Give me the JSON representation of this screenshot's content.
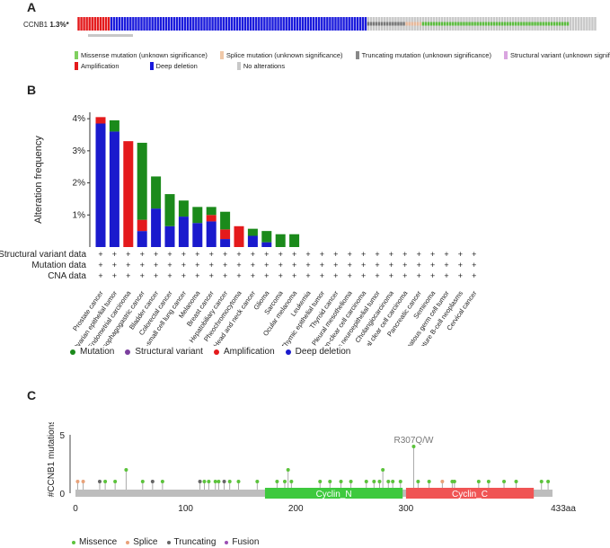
{
  "panels": {
    "a": "A",
    "b": "B",
    "c": "C"
  },
  "panel_a": {
    "gene": "CCNB1",
    "pct": "1.3%*",
    "colors": {
      "amplification": "#e41a1c",
      "deep_deletion": "#1a1adc",
      "missense": "#5cbd3f",
      "splice": "#e8b89a",
      "truncating": "#777777",
      "no_alteration": "#c8c8c8"
    },
    "legend": {
      "row1": [
        {
          "label": "Missense mutation (unknown significance)",
          "color": "#7fcf5f",
          "kind": "missense"
        },
        {
          "label": "Splice mutation (unknown significance)",
          "color": "#f0c8a8",
          "kind": "splice"
        },
        {
          "label": "Truncating mutation (unknown significance)",
          "color": "#888888",
          "kind": "truncating"
        },
        {
          "label": "Structural variant (unknown significance)",
          "color": "#d9a5e0",
          "kind": "structural"
        }
      ],
      "row2": [
        {
          "label": "Amplification",
          "color": "#e41a1c",
          "kind": "amplification"
        },
        {
          "label": "Deep deletion",
          "color": "#1a1adc",
          "kind": "deep-deletion"
        },
        {
          "label": "No alterations",
          "color": "#c8c8c8",
          "kind": "no-alterations"
        }
      ]
    }
  },
  "chart_data": [
    {
      "type": "bar",
      "title": "",
      "ylabel": "Alteration frequency",
      "ylim": [
        0,
        4.2
      ],
      "yticks": [
        "1%",
        "2%",
        "3%",
        "4%"
      ],
      "yticks_values": [
        1,
        2,
        3,
        4
      ],
      "categories": [
        "Prostate cancer",
        "Ovarian epithelial tumor",
        "Endometrial carcinoma",
        "Esophagogastric cancer",
        "Bladder cancer",
        "Colorectal cancer",
        "Non-small cell lung cancer",
        "Melanoma",
        "Breast cancer",
        "Hepatobiliary cancer",
        "Pheochromocytoma",
        "Head and neck cancer",
        "Glioma",
        "Sarcoma",
        "Ocular melanoma",
        "Leukemia",
        "Thymic epithelial tumor",
        "Thyroid cancer",
        "Pleural mesothelioma",
        "Renal non-clear cell carcinoma",
        "Miscellaneous neuroepithelial tumor",
        "Cholangiocarcinoma",
        "Renal clear cell carcinoma",
        "Pancreatic cancer",
        "Seminoma",
        "Non-seminomatous germ cell tumor",
        "Mature B-cell neoplasms",
        "Cervical cancer"
      ],
      "series": [
        {
          "name": "Deep deletion",
          "color": "#1a1acd",
          "values": [
            3.85,
            3.6,
            0,
            0.5,
            1.2,
            0.65,
            0.95,
            0.75,
            0.8,
            0.25,
            0,
            0.35,
            0.15,
            0,
            0,
            0,
            0,
            0,
            0,
            0,
            0,
            0,
            0,
            0,
            0,
            0,
            0,
            0
          ]
        },
        {
          "name": "Amplification",
          "color": "#e41a1c",
          "values": [
            0.2,
            0,
            3.3,
            0.35,
            0,
            0,
            0,
            0,
            0.2,
            0.3,
            0.65,
            0,
            0,
            0,
            0,
            0,
            0,
            0,
            0,
            0,
            0,
            0,
            0,
            0,
            0,
            0,
            0,
            0
          ]
        },
        {
          "name": "Mutation",
          "color": "#1b8a1b",
          "values": [
            0,
            0.35,
            0,
            2.4,
            1.0,
            1.0,
            0.5,
            0.5,
            0.25,
            0.55,
            0,
            0.22,
            0.35,
            0.4,
            0.4,
            0,
            0,
            0,
            0,
            0,
            0,
            0,
            0,
            0,
            0,
            0,
            0,
            0
          ]
        },
        {
          "name": "Structural variant",
          "color": "#7b3f9e",
          "values": [
            0,
            0,
            0,
            0,
            0,
            0,
            0,
            0,
            0,
            0,
            0,
            0,
            0,
            0,
            0,
            0,
            0,
            0,
            0,
            0,
            0,
            0,
            0,
            0,
            0,
            0,
            0,
            0
          ]
        }
      ],
      "data_rows": [
        "Structural variant data",
        "Mutation data",
        "CNA data"
      ],
      "row_marker": "+",
      "legend": [
        {
          "label": "Mutation",
          "color": "#1b8a1b"
        },
        {
          "label": "Structural variant",
          "color": "#7b3f9e"
        },
        {
          "label": "Amplification",
          "color": "#e41a1c"
        },
        {
          "label": "Deep deletion",
          "color": "#1a1acd"
        }
      ]
    },
    {
      "type": "lollipop",
      "ylabel": "#CCNB1 mutations",
      "ylim": [
        0,
        5
      ],
      "yticks": [
        "0",
        "5"
      ],
      "xlim": [
        0,
        433
      ],
      "xticks": [
        "0",
        "100",
        "200",
        "300",
        "433aa"
      ],
      "xticks_values": [
        0,
        100,
        200,
        300,
        433
      ],
      "domains": [
        {
          "label": "Cyclin_N",
          "start": 172,
          "end": 297,
          "color": "#3ec93e"
        },
        {
          "label": "Cyclin_C",
          "start": 300,
          "end": 416,
          "color": "#f05454"
        }
      ],
      "annotation": "R307Q/W",
      "mutations": [
        {
          "pos": 2,
          "count": 1,
          "type": "splice"
        },
        {
          "pos": 7,
          "count": 1,
          "type": "splice"
        },
        {
          "pos": 22,
          "count": 1,
          "type": "truncating"
        },
        {
          "pos": 27,
          "count": 1,
          "type": "missense"
        },
        {
          "pos": 36,
          "count": 1,
          "type": "missense"
        },
        {
          "pos": 46,
          "count": 2,
          "type": "missense"
        },
        {
          "pos": 61,
          "count": 1,
          "type": "missense"
        },
        {
          "pos": 70,
          "count": 1,
          "type": "truncating"
        },
        {
          "pos": 79,
          "count": 1,
          "type": "missense"
        },
        {
          "pos": 113,
          "count": 1,
          "type": "truncating"
        },
        {
          "pos": 117,
          "count": 1,
          "type": "missense"
        },
        {
          "pos": 121,
          "count": 1,
          "type": "missense"
        },
        {
          "pos": 127,
          "count": 1,
          "type": "missense"
        },
        {
          "pos": 130,
          "count": 1,
          "type": "missense"
        },
        {
          "pos": 135,
          "count": 1,
          "type": "truncating"
        },
        {
          "pos": 140,
          "count": 1,
          "type": "missense"
        },
        {
          "pos": 148,
          "count": 1,
          "type": "missense"
        },
        {
          "pos": 165,
          "count": 1,
          "type": "missense"
        },
        {
          "pos": 183,
          "count": 1,
          "type": "missense"
        },
        {
          "pos": 190,
          "count": 1,
          "type": "missense"
        },
        {
          "pos": 193,
          "count": 2,
          "type": "missense"
        },
        {
          "pos": 196,
          "count": 1,
          "type": "missense"
        },
        {
          "pos": 222,
          "count": 1,
          "type": "missense"
        },
        {
          "pos": 231,
          "count": 1,
          "type": "missense"
        },
        {
          "pos": 241,
          "count": 1,
          "type": "missense"
        },
        {
          "pos": 250,
          "count": 1,
          "type": "missense"
        },
        {
          "pos": 264,
          "count": 1,
          "type": "missense"
        },
        {
          "pos": 271,
          "count": 1,
          "type": "missense"
        },
        {
          "pos": 276,
          "count": 1,
          "type": "missense"
        },
        {
          "pos": 279,
          "count": 2,
          "type": "missense"
        },
        {
          "pos": 284,
          "count": 1,
          "type": "missense"
        },
        {
          "pos": 288,
          "count": 1,
          "type": "missense"
        },
        {
          "pos": 295,
          "count": 1,
          "type": "missense"
        },
        {
          "pos": 307,
          "count": 4,
          "type": "missense"
        },
        {
          "pos": 311,
          "count": 1,
          "type": "missense"
        },
        {
          "pos": 321,
          "count": 1,
          "type": "missense"
        },
        {
          "pos": 333,
          "count": 1,
          "type": "splice"
        },
        {
          "pos": 342,
          "count": 1,
          "type": "missense"
        },
        {
          "pos": 344,
          "count": 1,
          "type": "missense"
        },
        {
          "pos": 366,
          "count": 1,
          "type": "missense"
        },
        {
          "pos": 375,
          "count": 1,
          "type": "missense"
        },
        {
          "pos": 389,
          "count": 1,
          "type": "missense"
        },
        {
          "pos": 400,
          "count": 1,
          "type": "missense"
        },
        {
          "pos": 423,
          "count": 1,
          "type": "missense"
        },
        {
          "pos": 429,
          "count": 1,
          "type": "missense"
        }
      ],
      "type_colors": {
        "missense": "#5cc33c",
        "splice": "#e8a27a",
        "truncating": "#666666",
        "fusion": "#9b4fb4"
      },
      "legend": [
        {
          "label": "Missence",
          "color": "#5cc33c"
        },
        {
          "label": "Splice",
          "color": "#e8a27a"
        },
        {
          "label": "Truncating",
          "color": "#666666"
        },
        {
          "label": "Fusion",
          "color": "#9b4fb4"
        }
      ]
    }
  ]
}
